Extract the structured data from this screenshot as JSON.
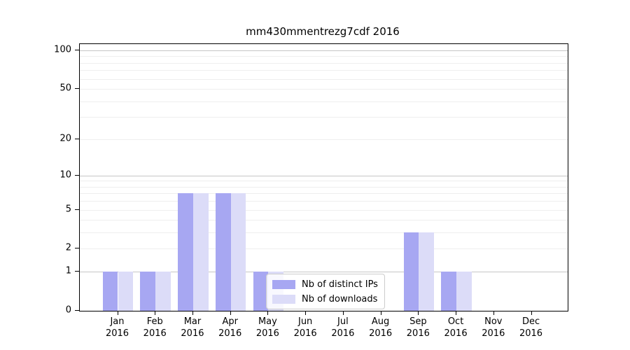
{
  "title": "mm430mmentrezg7cdf 2016",
  "chart_data": {
    "type": "bar",
    "title": "mm430mmentrezg7cdf 2016",
    "categories": [
      "Jan 2016",
      "Feb 2016",
      "Mar 2016",
      "Apr 2016",
      "May 2016",
      "Jun 2016",
      "Jul 2016",
      "Aug 2016",
      "Sep 2016",
      "Oct 2016",
      "Nov 2016",
      "Dec 2016"
    ],
    "series": [
      {
        "name": "Nb of distinct IPs",
        "color": "#a7a7f2",
        "values": [
          1,
          1,
          7,
          7,
          1,
          0,
          0,
          0,
          3,
          1,
          0,
          0
        ]
      },
      {
        "name": "Nb of downloads",
        "color": "#dcdcf8",
        "values": [
          1,
          1,
          7,
          7,
          1,
          0,
          0,
          0,
          3,
          1,
          0,
          0
        ]
      }
    ],
    "yticks": [
      0,
      1,
      2,
      5,
      10,
      20,
      50,
      100
    ],
    "ylim": [
      0,
      112
    ],
    "yscale": "log1p",
    "xlabel": "",
    "ylabel": "",
    "grid": "horizontal, minor + decade lines",
    "legend_position": "inside lower-center-left",
    "colors": {
      "decade_gridline": "#c6c6c6",
      "minor_gridline": "#eeeeee",
      "spine": "#000000",
      "background": "#ffffff"
    }
  }
}
